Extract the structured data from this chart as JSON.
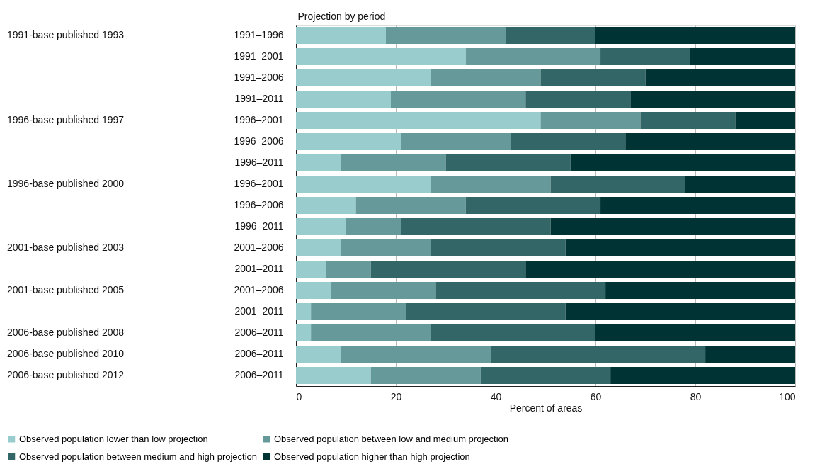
{
  "chart_data": {
    "type": "bar",
    "orientation": "horizontal",
    "stacked": true,
    "ylabel": "Projection by period",
    "xlabel": "Percent of areas",
    "categories": [
      "1991–1996",
      "1991–2001",
      "1991–2006",
      "1991–2011",
      "1996–2001",
      "1996–2006",
      "1996–2011",
      "1996–2001",
      "1996–2006",
      "1996–2011",
      "2001–2006",
      "2001–2011",
      "2001–2006",
      "2001–2011",
      "2006–2011",
      "2006–2011",
      "2006–2011"
    ],
    "series": [
      {
        "name": "Observed population lower than low projection",
        "color": "#99cccc",
        "values": [
          18,
          34,
          27,
          19,
          49,
          21,
          9,
          27,
          12,
          10,
          9,
          6,
          7,
          3,
          3,
          9,
          15
        ]
      },
      {
        "name": "Observed population between low and medium projection",
        "color": "#669999",
        "values": [
          24,
          27,
          22,
          27,
          20,
          22,
          21,
          24,
          22,
          11,
          18,
          9,
          21,
          19,
          24,
          30,
          22
        ]
      },
      {
        "name": "Observed population between medium and high projection",
        "color": "#336666",
        "values": [
          18,
          18,
          21,
          21,
          19,
          23,
          25,
          27,
          27,
          30,
          27,
          31,
          34,
          32,
          33,
          43,
          26
        ]
      },
      {
        "name": "Observed population higher than high projection",
        "color": "#003333",
        "values": [
          40,
          21,
          30,
          33,
          12,
          34,
          45,
          22,
          39,
          49,
          46,
          54,
          38,
          46,
          40,
          18,
          37
        ]
      }
    ],
    "annotations": [
      "1991-base published 1993",
      "1996-base published 1997",
      "1996-base published 2000",
      "2001-base published 2003",
      "2001-base published 2005",
      "2006-base published 2008",
      "2006-base published 2010",
      "2006-base published 2012"
    ],
    "xlim": [
      0,
      100
    ],
    "xticks": [
      0,
      20,
      40,
      60,
      80,
      100
    ],
    "grid": "x",
    "legend": "bottom"
  }
}
